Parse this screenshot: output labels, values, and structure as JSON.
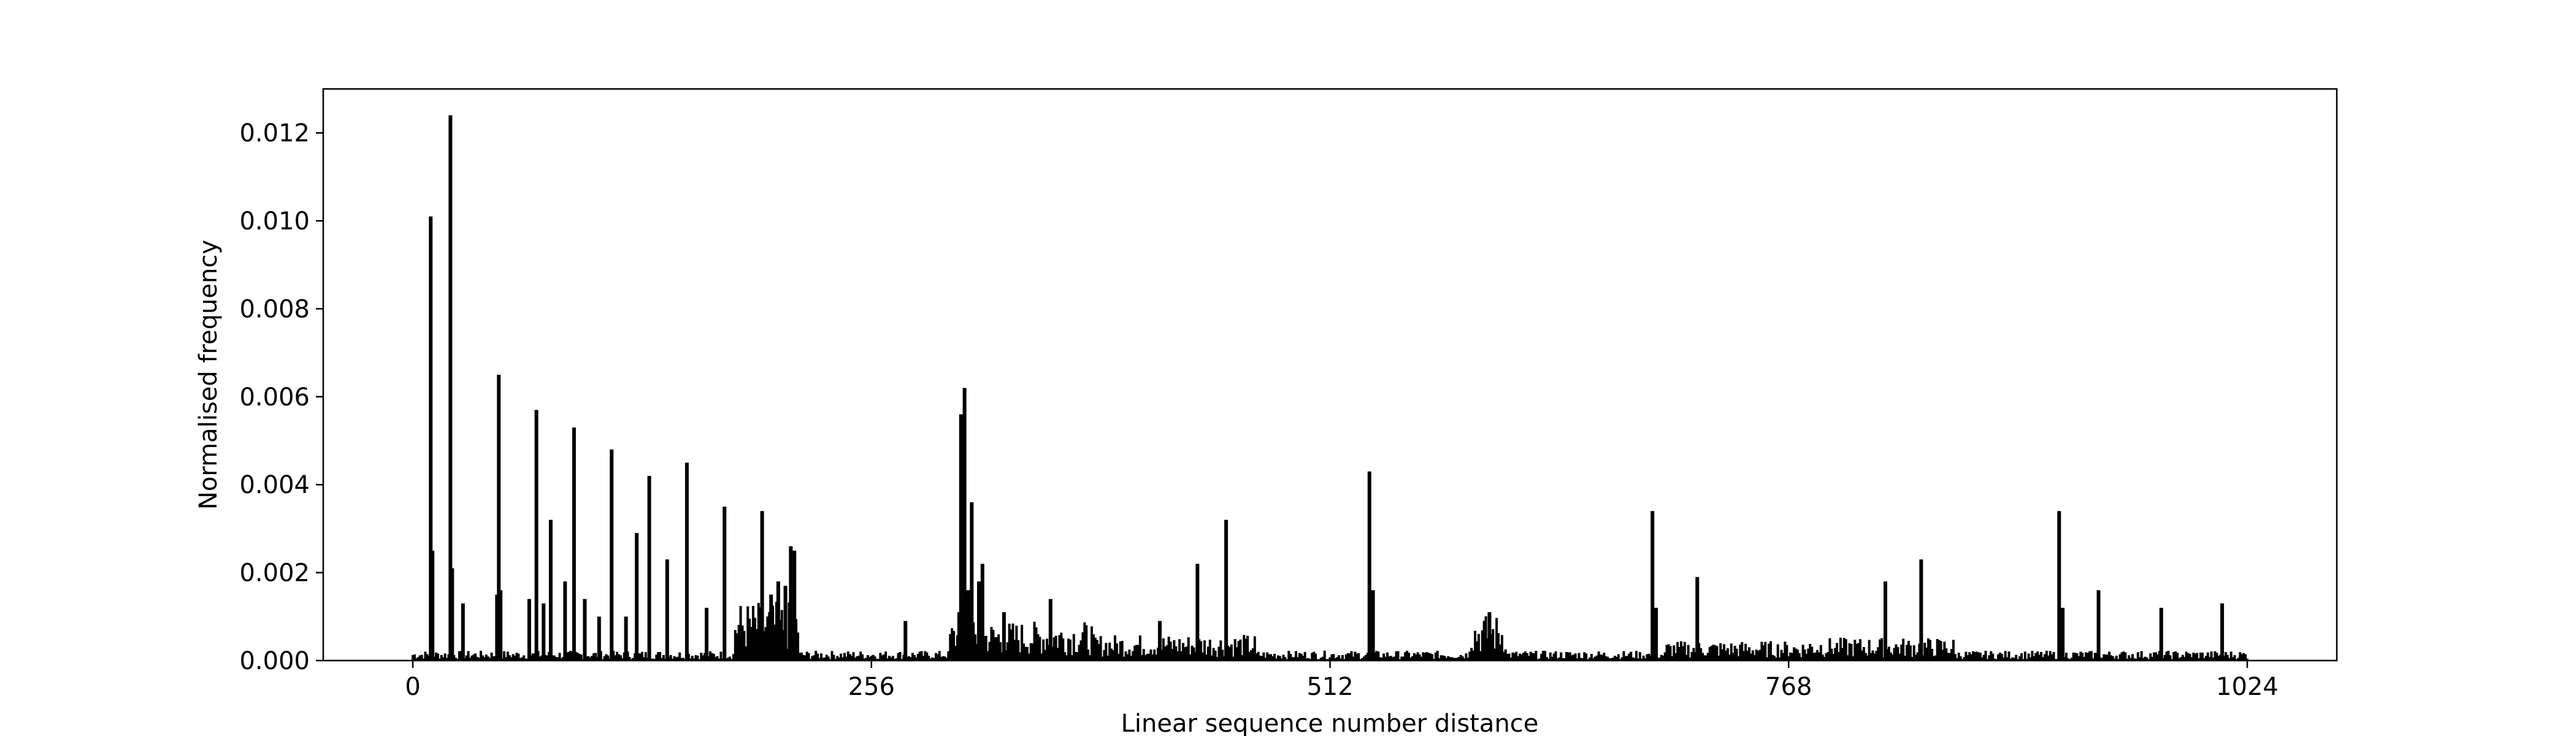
{
  "chart_data": {
    "type": "bar",
    "title": "",
    "xlabel": "Linear sequence number distance",
    "ylabel": "Normalised frequency",
    "xlim": [
      -50,
      1074
    ],
    "ylim": [
      0,
      0.013
    ],
    "xticks": [
      0,
      256,
      512,
      768,
      1024
    ],
    "xtick_labels": [
      "0",
      "256",
      "512",
      "768",
      "1024"
    ],
    "yticks": [
      0,
      0.002,
      0.004,
      0.006,
      0.008,
      0.01,
      0.012
    ],
    "ytick_labels": [
      "0.000",
      "0.002",
      "0.004",
      "0.006",
      "0.008",
      "0.010",
      "0.012"
    ],
    "bar_color": "#000000",
    "grid": false,
    "legend": "none",
    "peaks": [
      {
        "x": 10,
        "y": 0.0101
      },
      {
        "x": 11,
        "y": 0.0025
      },
      {
        "x": 21,
        "y": 0.0124
      },
      {
        "x": 22,
        "y": 0.0021
      },
      {
        "x": 28,
        "y": 0.0013
      },
      {
        "x": 47,
        "y": 0.0015
      },
      {
        "x": 48,
        "y": 0.0065
      },
      {
        "x": 49,
        "y": 0.0016
      },
      {
        "x": 65,
        "y": 0.0014
      },
      {
        "x": 69,
        "y": 0.0057
      },
      {
        "x": 73,
        "y": 0.0013
      },
      {
        "x": 77,
        "y": 0.0032
      },
      {
        "x": 85,
        "y": 0.0018
      },
      {
        "x": 90,
        "y": 0.0053
      },
      {
        "x": 96,
        "y": 0.0014
      },
      {
        "x": 104,
        "y": 0.001
      },
      {
        "x": 111,
        "y": 0.0048
      },
      {
        "x": 119,
        "y": 0.001
      },
      {
        "x": 125,
        "y": 0.0029
      },
      {
        "x": 132,
        "y": 0.0042
      },
      {
        "x": 142,
        "y": 0.0023
      },
      {
        "x": 153,
        "y": 0.0045
      },
      {
        "x": 164,
        "y": 0.0012
      },
      {
        "x": 174,
        "y": 0.0035
      },
      {
        "x": 195,
        "y": 0.0034
      },
      {
        "x": 200,
        "y": 0.0015
      },
      {
        "x": 204,
        "y": 0.0018
      },
      {
        "x": 208,
        "y": 0.0017
      },
      {
        "x": 211,
        "y": 0.0026
      },
      {
        "x": 213,
        "y": 0.0025
      },
      {
        "x": 275,
        "y": 0.0009
      },
      {
        "x": 305,
        "y": 0.0011
      },
      {
        "x": 306,
        "y": 0.0056
      },
      {
        "x": 307,
        "y": 0.0014
      },
      {
        "x": 308,
        "y": 0.0062
      },
      {
        "x": 310,
        "y": 0.0016
      },
      {
        "x": 312,
        "y": 0.0036
      },
      {
        "x": 316,
        "y": 0.0018
      },
      {
        "x": 318,
        "y": 0.0022
      },
      {
        "x": 330,
        "y": 0.0011
      },
      {
        "x": 356,
        "y": 0.0014
      },
      {
        "x": 417,
        "y": 0.0009
      },
      {
        "x": 438,
        "y": 0.0022
      },
      {
        "x": 454,
        "y": 0.0032
      },
      {
        "x": 534,
        "y": 0.0043
      },
      {
        "x": 536,
        "y": 0.0016
      },
      {
        "x": 601,
        "y": 0.0011
      },
      {
        "x": 692,
        "y": 0.0034
      },
      {
        "x": 694,
        "y": 0.0012
      },
      {
        "x": 717,
        "y": 0.0019
      },
      {
        "x": 822,
        "y": 0.0018
      },
      {
        "x": 842,
        "y": 0.0023
      },
      {
        "x": 919,
        "y": 0.0034
      },
      {
        "x": 921,
        "y": 0.0012
      },
      {
        "x": 941,
        "y": 0.0016
      },
      {
        "x": 976,
        "y": 0.0012
      },
      {
        "x": 1010,
        "y": 0.0013
      }
    ],
    "clusters": [
      {
        "from": 180,
        "to": 215,
        "level": 0.0009
      },
      {
        "from": 300,
        "to": 380,
        "level": 0.0006
      },
      {
        "from": 380,
        "to": 470,
        "level": 0.0004
      },
      {
        "from": 590,
        "to": 610,
        "level": 0.0007
      },
      {
        "from": 700,
        "to": 780,
        "level": 0.0003
      },
      {
        "from": 780,
        "to": 860,
        "level": 0.00035
      }
    ],
    "baseline_level": 0.00015
  }
}
